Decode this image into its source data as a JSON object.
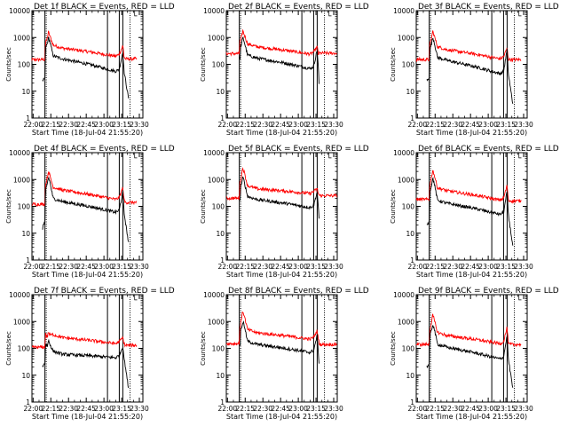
{
  "chart_data": {
    "type": "line",
    "layout": "3x3 grid",
    "x_scale": "time",
    "y_scale": "log",
    "ylim": [
      1,
      10000
    ],
    "x_range": [
      "21:59",
      "23:33"
    ],
    "x_tick_labels": [
      "22:00",
      "22:15",
      "22:30",
      "22:45",
      "23:00",
      "23:15",
      "23:30"
    ],
    "y_tick_labels": [
      "1",
      "10",
      "100",
      "1000",
      "10000"
    ],
    "ylabel": "Counts/sec",
    "xlabel": "Start Time (18-Jul-04 21:55:20)",
    "legend": "└",
    "colors": {
      "events": "#000000",
      "lld": "#ff0000"
    },
    "marker_lines_solid": [
      "22:10",
      "23:03",
      "23:13",
      "23:16"
    ],
    "marker_lines_dotted": [
      "22:10",
      "23:21"
    ],
    "panels": [
      {
        "title": "Det 1f BLACK = Events, RED = LLD",
        "events": {
          "start": "22:08",
          "end": "23:21",
          "pre": [
            25,
            28
          ],
          "peak": 1000,
          "plateau": 160,
          "tail": 55,
          "bump": 300,
          "drop": 5
        },
        "lld": {
          "start": "21:59",
          "end": "23:28",
          "base": 150,
          "peak": 1600,
          "plateau": 400,
          "tail": 200,
          "bump": 500,
          "end_val": 160
        }
      },
      {
        "title": "Det 2f BLACK = Events, RED = LLD",
        "events": {
          "start": "22:11",
          "end": "23:18",
          "pre": [],
          "peak": 1000,
          "plateau": 170,
          "tail": 70,
          "bump": 350,
          "drop": 8
        },
        "lld": {
          "start": "21:59",
          "end": "23:33",
          "base": 250,
          "peak": 1800,
          "plateau": 450,
          "tail": 240,
          "bump": 450,
          "end_val": 260
        }
      },
      {
        "title": "Det 3f BLACK = Events, RED = LLD",
        "events": {
          "start": "22:08",
          "end": "23:21",
          "pre": [
            25,
            30
          ],
          "peak": 1000,
          "plateau": 140,
          "tail": 45,
          "bump": 350,
          "drop": 3
        },
        "lld": {
          "start": "21:59",
          "end": "23:28",
          "base": 150,
          "peak": 1700,
          "plateau": 350,
          "tail": 160,
          "bump": 400,
          "end_val": 150
        }
      },
      {
        "title": "Det 4f BLACK = Events, RED = LLD",
        "events": {
          "start": "22:08",
          "end": "23:21",
          "pre": [
            15,
            25
          ],
          "peak": 1200,
          "plateau": 150,
          "tail": 60,
          "bump": 350,
          "drop": 4
        },
        "lld": {
          "start": "21:59",
          "end": "23:28",
          "base": 120,
          "peak": 2000,
          "plateau": 400,
          "tail": 180,
          "bump": 500,
          "end_val": 140
        }
      },
      {
        "title": "Det 5f BLACK = Events, RED = LLD",
        "events": {
          "start": "22:11",
          "end": "23:18",
          "pre": [],
          "peak": 1200,
          "plateau": 180,
          "tail": 90,
          "bump": 350,
          "drop": 15
        },
        "lld": {
          "start": "21:59",
          "end": "23:33",
          "base": 200,
          "peak": 2700,
          "plateau": 450,
          "tail": 300,
          "bump": 450,
          "end_val": 250
        }
      },
      {
        "title": "Det 6f BLACK = Events, RED = LLD",
        "events": {
          "start": "22:08",
          "end": "23:21",
          "pre": [
            20,
            25
          ],
          "peak": 1100,
          "plateau": 130,
          "tail": 50,
          "bump": 350,
          "drop": 3
        },
        "lld": {
          "start": "21:59",
          "end": "23:28",
          "base": 180,
          "peak": 2200,
          "plateau": 380,
          "tail": 170,
          "bump": 600,
          "end_val": 160
        }
      },
      {
        "title": "Det 7f BLACK = Events, RED = LLD",
        "events": {
          "start": "22:08",
          "end": "23:21",
          "pre": [
            20,
            25
          ],
          "peak": 200,
          "plateau": 60,
          "tail": 45,
          "bump": 120,
          "drop": 3
        },
        "lld": {
          "start": "21:59",
          "end": "23:28",
          "base": 110,
          "peak": 420,
          "plateau": 250,
          "tail": 150,
          "bump": 250,
          "end_val": 130
        }
      },
      {
        "title": "Det 8f BLACK = Events, RED = LLD",
        "events": {
          "start": "22:11",
          "end": "23:18",
          "pre": [],
          "peak": 1000,
          "plateau": 140,
          "tail": 70,
          "bump": 300,
          "drop": 12
        },
        "lld": {
          "start": "21:59",
          "end": "23:33",
          "base": 150,
          "peak": 2400,
          "plateau": 380,
          "tail": 220,
          "bump": 450,
          "end_val": 140
        }
      },
      {
        "title": "Det 9f BLACK = Events, RED = LLD",
        "events": {
          "start": "22:08",
          "end": "23:21",
          "pre": [
            20,
            25
          ],
          "peak": 800,
          "plateau": 110,
          "tail": 40,
          "bump": 300,
          "drop": 3
        },
        "lld": {
          "start": "21:59",
          "end": "23:28",
          "base": 140,
          "peak": 1700,
          "plateau": 300,
          "tail": 150,
          "bump": 600,
          "end_val": 140
        }
      }
    ]
  }
}
